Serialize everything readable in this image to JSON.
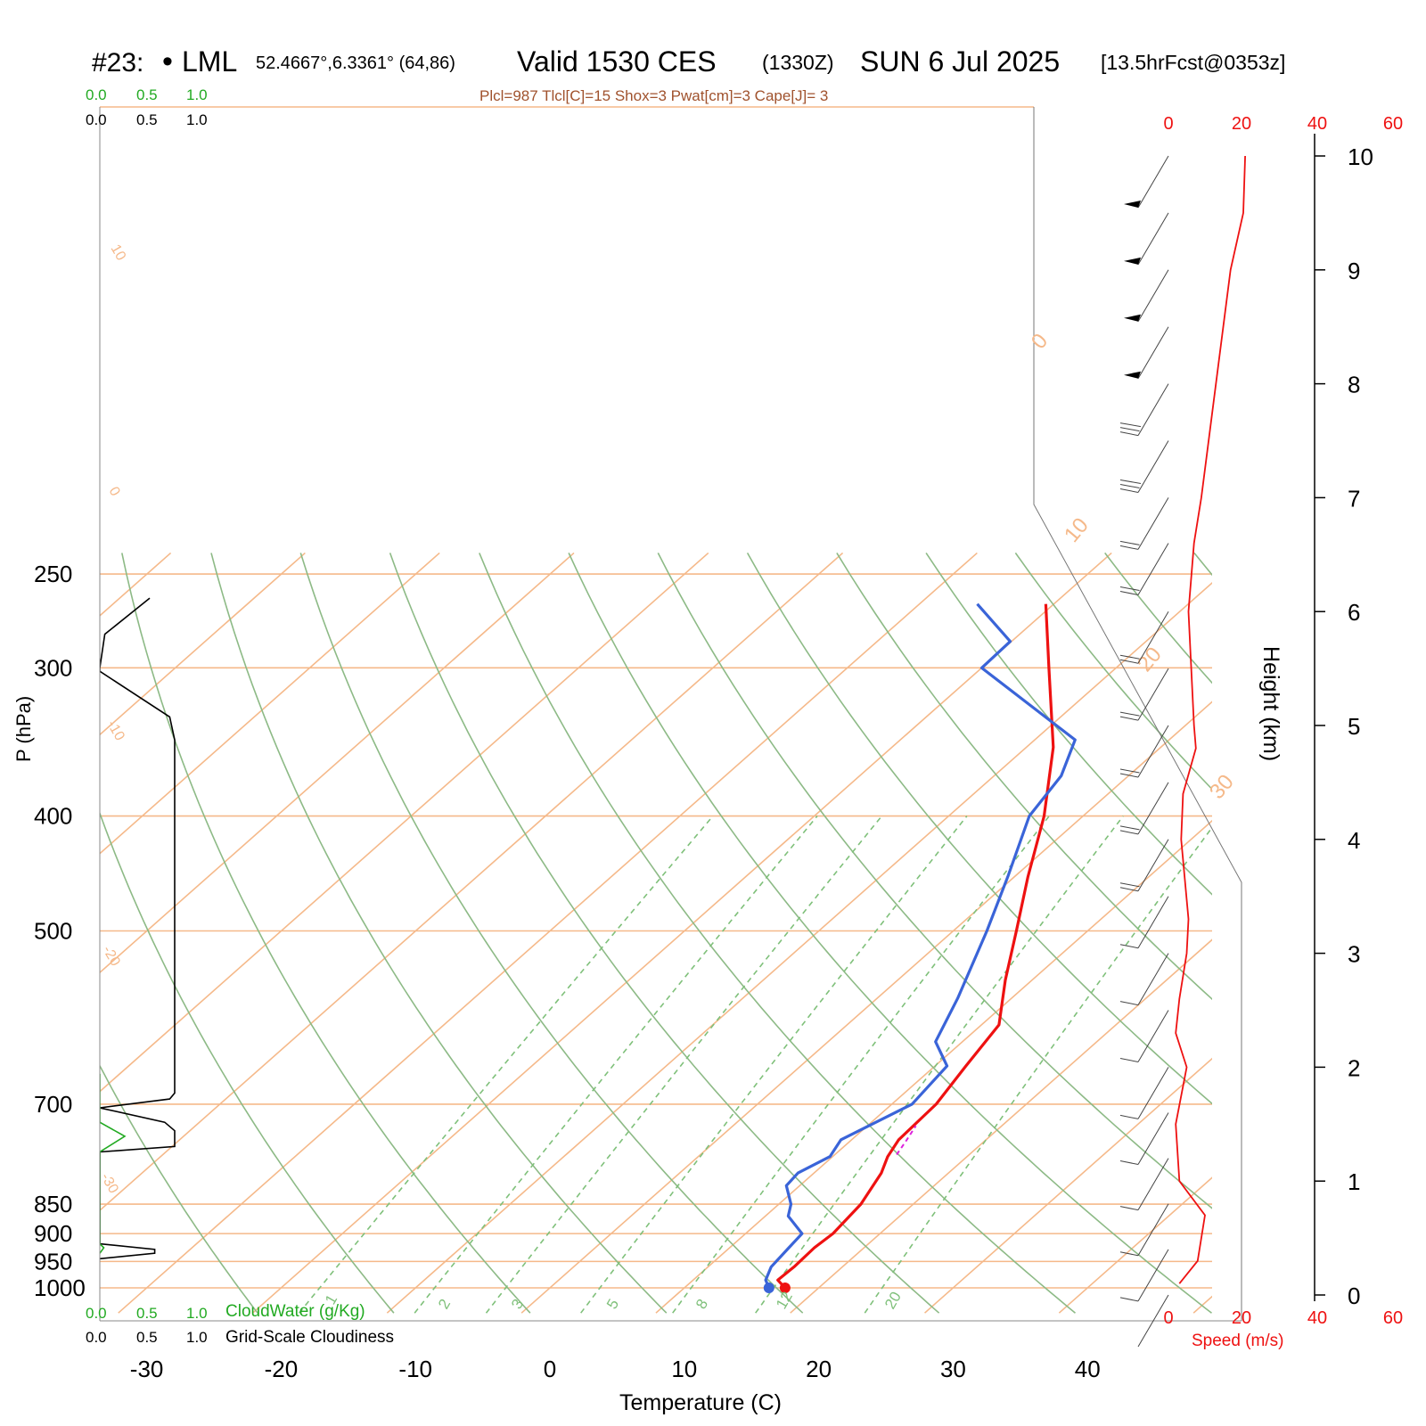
{
  "header": {
    "station_id": "#23:",
    "station_marker": "•",
    "station_name": "LML",
    "location": "52.4667°,6.3361° (64,86)",
    "valid_label": "Valid 1530 CES",
    "valid_utc": "(1330Z)",
    "valid_date": "SUN 6 Jul 2025",
    "forecast": "[13.5hrFcst@0353z]",
    "params": "Plcl=987 Tlcl[C]=15 Shox=3 Pwat[cm]=3 Cape[J]= 3"
  },
  "left_panel": {
    "cloudwater_ticks": [
      "0.0",
      "0.5",
      "1.0"
    ],
    "cloudiness_ticks": [
      "0.0",
      "0.5",
      "1.0"
    ],
    "cloudwater_label": "CloudWater (g/Kg)",
    "cloudiness_label": "Grid-Scale Cloudiness"
  },
  "right_panel": {
    "height_label": "Height (km)",
    "height_ticks": [
      "0",
      "1",
      "2",
      "3",
      "4",
      "5",
      "6",
      "7",
      "8",
      "9",
      "10"
    ],
    "speed_label": "Speed (m/s)",
    "speed_ticks": [
      "0",
      "20",
      "40",
      "60"
    ]
  },
  "colors": {
    "isotherm": "#f5b98a",
    "dry_adiabat": "#8dba86",
    "mixing_ratio": "#7fc07a",
    "temperature": "#ee1111",
    "dewpoint": "#3a64d8",
    "parcel": "#dd22dd",
    "cloudwater": "#22aa22",
    "cloudiness": "#000000",
    "speed": "#ee1111",
    "header_params": "#a0522d"
  },
  "chart_data": {
    "type": "line",
    "title": "Skew-T log-P sounding",
    "xlabel": "Temperature (C)",
    "ylabel": "P (hPa)",
    "x_ticks": [
      "-30",
      "-20",
      "-10",
      "0",
      "10",
      "20",
      "30",
      "40"
    ],
    "y_ticks": [
      "250",
      "300",
      "400",
      "500",
      "700",
      "850",
      "900",
      "950",
      "1000"
    ],
    "isotherm_labels": [
      "10",
      "0",
      "-10",
      "-20",
      "-30",
      "0",
      "10",
      "20",
      "30"
    ],
    "mixing_ratio_labels": [
      "1",
      "2",
      "3",
      "5",
      "8",
      "12",
      "20"
    ],
    "grid": true,
    "series": [
      {
        "name": "Temperature",
        "points": [
          [
            1000,
            17.5
          ],
          [
            985,
            16.3
          ],
          [
            960,
            16.4
          ],
          [
            925,
            16.3
          ],
          [
            900,
            16.5
          ],
          [
            850,
            16.1
          ],
          [
            800,
            15.0
          ],
          [
            775,
            14.1
          ],
          [
            750,
            13.5
          ],
          [
            700,
            13.3
          ],
          [
            650,
            12.3
          ],
          [
            600,
            11.3
          ],
          [
            550,
            8.0
          ],
          [
            500,
            4.7
          ],
          [
            450,
            1.0
          ],
          [
            400,
            -2.9
          ],
          [
            350,
            -8.0
          ],
          [
            300,
            -15.0
          ],
          [
            265,
            -20.6
          ]
        ]
      },
      {
        "name": "Dewpoint",
        "points": [
          [
            1000,
            16.3
          ],
          [
            985,
            15.4
          ],
          [
            960,
            14.7
          ],
          [
            925,
            14.4
          ],
          [
            900,
            14.2
          ],
          [
            870,
            11.7
          ],
          [
            850,
            10.9
          ],
          [
            820,
            9.0
          ],
          [
            800,
            8.8
          ],
          [
            775,
            9.8
          ],
          [
            750,
            9.2
          ],
          [
            700,
            11.5
          ],
          [
            650,
            10.9
          ],
          [
            620,
            8.0
          ],
          [
            570,
            6.0
          ],
          [
            500,
            2.5
          ],
          [
            450,
            -0.5
          ],
          [
            400,
            -4.0
          ],
          [
            370,
            -5.0
          ],
          [
            345,
            -7.0
          ],
          [
            300,
            -20.0
          ],
          [
            285,
            -20.1
          ],
          [
            265,
            -25.7
          ]
        ]
      },
      {
        "name": "Parcel",
        "points": [
          [
            772,
            14.6
          ],
          [
            750,
            14.1
          ],
          [
            730,
            13.6
          ]
        ]
      }
    ],
    "wind_speed": {
      "unit": "m/s",
      "points": [
        [
          0.1,
          3
        ],
        [
          0.3,
          8
        ],
        [
          0.7,
          10
        ],
        [
          1.0,
          3
        ],
        [
          1.5,
          2
        ],
        [
          2.0,
          5
        ],
        [
          2.3,
          2
        ],
        [
          2.6,
          3
        ],
        [
          3.0,
          5
        ],
        [
          3.3,
          5.5
        ],
        [
          4.0,
          3.5
        ],
        [
          4.4,
          4
        ],
        [
          4.8,
          7.5
        ],
        [
          5.0,
          7
        ],
        [
          6.0,
          5.5
        ],
        [
          6.6,
          7
        ],
        [
          7.0,
          9
        ],
        [
          8.0,
          13
        ],
        [
          8.5,
          15
        ],
        [
          9.0,
          17
        ],
        [
          9.5,
          20.5
        ],
        [
          10.0,
          21
        ]
      ]
    },
    "winds": [
      {
        "h": 0.0,
        "barbs": 0
      },
      {
        "h": 0.4,
        "barbs": 1
      },
      {
        "h": 0.8,
        "barbs": 1
      },
      {
        "h": 1.2,
        "barbs": 1
      },
      {
        "h": 1.6,
        "barbs": 1
      },
      {
        "h": 2.0,
        "barbs": 1
      },
      {
        "h": 2.5,
        "barbs": 1
      },
      {
        "h": 3.0,
        "barbs": 1
      },
      {
        "h": 3.5,
        "barbs": 1
      },
      {
        "h": 4.0,
        "barbs": 2
      },
      {
        "h": 4.5,
        "barbs": 2
      },
      {
        "h": 5.0,
        "barbs": 2
      },
      {
        "h": 5.5,
        "barbs": 2
      },
      {
        "h": 6.0,
        "barbs": 2
      },
      {
        "h": 6.6,
        "barbs": 2
      },
      {
        "h": 7.0,
        "barbs": 2
      },
      {
        "h": 7.5,
        "barbs": 3
      },
      {
        "h": 8.0,
        "barbs": 3
      },
      {
        "h": 8.5,
        "barbs": 0,
        "flag": true
      },
      {
        "h": 9.0,
        "barbs": 0,
        "flag": true
      },
      {
        "h": 9.5,
        "barbs": 0,
        "flag": true
      },
      {
        "h": 10.0,
        "barbs": 0,
        "flag": true
      }
    ],
    "cloudiness_profile": [
      [
        262,
        0.5
      ],
      [
        281,
        0.05
      ],
      [
        300,
        0.0
      ],
      [
        302,
        0.0
      ],
      [
        330,
        0.7
      ],
      [
        345,
        0.75
      ],
      [
        685,
        0.75
      ],
      [
        693,
        0.7
      ],
      [
        705,
        0.0
      ],
      [
        725,
        0.65
      ],
      [
        737,
        0.75
      ],
      [
        760,
        0.75
      ],
      [
        768,
        0.0
      ],
      [
        918,
        0.0
      ],
      [
        928,
        0.55
      ],
      [
        935,
        0.55
      ],
      [
        945,
        0.0
      ]
    ],
    "cloudwater_profile": [
      [
        660,
        0.0
      ],
      [
        725,
        0.0
      ],
      [
        745,
        0.25
      ],
      [
        768,
        0.0
      ],
      [
        918,
        0.0
      ],
      [
        925,
        0.04
      ],
      [
        935,
        0.0
      ]
    ]
  }
}
